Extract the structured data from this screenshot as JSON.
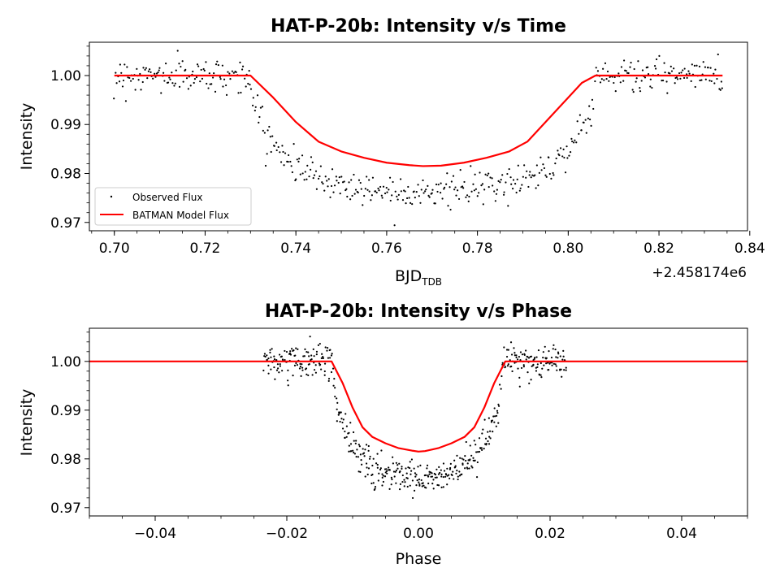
{
  "chart_data": [
    {
      "type": "scatter",
      "title": "HAT-P-20b: Intensity v/s Time",
      "xlabel_main": "BJD",
      "xlabel_sub": "TDB",
      "ylabel": "Intensity",
      "offset_text": "+2.458174e6",
      "xlim": [
        0.6945,
        0.8395
      ],
      "ylim": [
        0.9683,
        1.0068
      ],
      "x_ticks": [
        0.7,
        0.72,
        0.74,
        0.76,
        0.78,
        0.8,
        0.82,
        0.84
      ],
      "x_tick_labels": [
        "0.70",
        "0.72",
        "0.74",
        "0.76",
        "0.78",
        "0.80",
        "0.82",
        "0.84"
      ],
      "y_ticks": [
        0.97,
        0.98,
        0.99,
        1.0
      ],
      "y_tick_labels": [
        "0.97",
        "0.98",
        "0.99",
        "1.00"
      ],
      "grid": false,
      "legend": {
        "placement": "lower-left",
        "entries": [
          {
            "label": "Observed Flux",
            "marker": "dot",
            "color": "#000000"
          },
          {
            "label": "BATMAN Model Flux",
            "marker": "line",
            "color": "#ff0000"
          }
        ]
      },
      "series": [
        {
          "name": "Observed Flux",
          "style": "points",
          "color": "#000000",
          "x_range": [
            0.7,
            0.834
          ],
          "n_points": 520,
          "baseline": 1.0,
          "scatter_sigma": 0.0017,
          "transit_start": 0.73,
          "transit_end": 0.806,
          "transit_min": 0.9765
        },
        {
          "name": "BATMAN Model Flux",
          "style": "line",
          "color": "#ff0000",
          "x": [
            0.7,
            0.73,
            0.735,
            0.74,
            0.745,
            0.75,
            0.755,
            0.76,
            0.765,
            0.768,
            0.772,
            0.777,
            0.782,
            0.787,
            0.791,
            0.795,
            0.8,
            0.803,
            0.806,
            0.834
          ],
          "y": [
            1.0,
            1.0,
            0.9955,
            0.9905,
            0.9865,
            0.9845,
            0.9832,
            0.9822,
            0.9817,
            0.9815,
            0.9816,
            0.9822,
            0.9832,
            0.9845,
            0.9865,
            0.9905,
            0.9955,
            0.9985,
            1.0,
            1.0
          ]
        }
      ]
    },
    {
      "type": "scatter",
      "title": "HAT-P-20b: Intensity v/s Phase",
      "xlabel": "Phase",
      "ylabel": "Intensity",
      "xlim": [
        -0.05,
        0.05
      ],
      "ylim": [
        0.9683,
        1.0068
      ],
      "x_ticks": [
        -0.04,
        -0.02,
        0.0,
        0.02,
        0.04
      ],
      "x_tick_labels": [
        "−0.04",
        "−0.02",
        "0.00",
        "0.02",
        "0.04"
      ],
      "y_ticks": [
        0.97,
        0.98,
        0.99,
        1.0
      ],
      "y_tick_labels": [
        "0.97",
        "0.98",
        "0.99",
        "1.00"
      ],
      "grid": false,
      "series": [
        {
          "name": "Observed Flux",
          "style": "points",
          "color": "#000000",
          "x_range": [
            -0.0235,
            0.0225
          ],
          "n_points": 520,
          "baseline": 1.0,
          "scatter_sigma": 0.0017,
          "transit_start": -0.013,
          "transit_end": 0.0128,
          "transit_min": 0.9765
        },
        {
          "name": "BATMAN Model Flux",
          "style": "line",
          "color": "#ff0000",
          "x": [
            -0.05,
            -0.0132,
            -0.0115,
            -0.01,
            -0.0085,
            -0.007,
            -0.005,
            -0.003,
            -0.001,
            0.0,
            0.001,
            0.003,
            0.005,
            0.007,
            0.0085,
            0.01,
            0.0115,
            0.0132,
            0.05
          ],
          "y": [
            1.0,
            1.0,
            0.9955,
            0.9905,
            0.9865,
            0.9845,
            0.9832,
            0.9822,
            0.9817,
            0.9815,
            0.9816,
            0.9822,
            0.9832,
            0.9845,
            0.9865,
            0.9905,
            0.9955,
            1.0,
            1.0
          ]
        }
      ]
    }
  ]
}
